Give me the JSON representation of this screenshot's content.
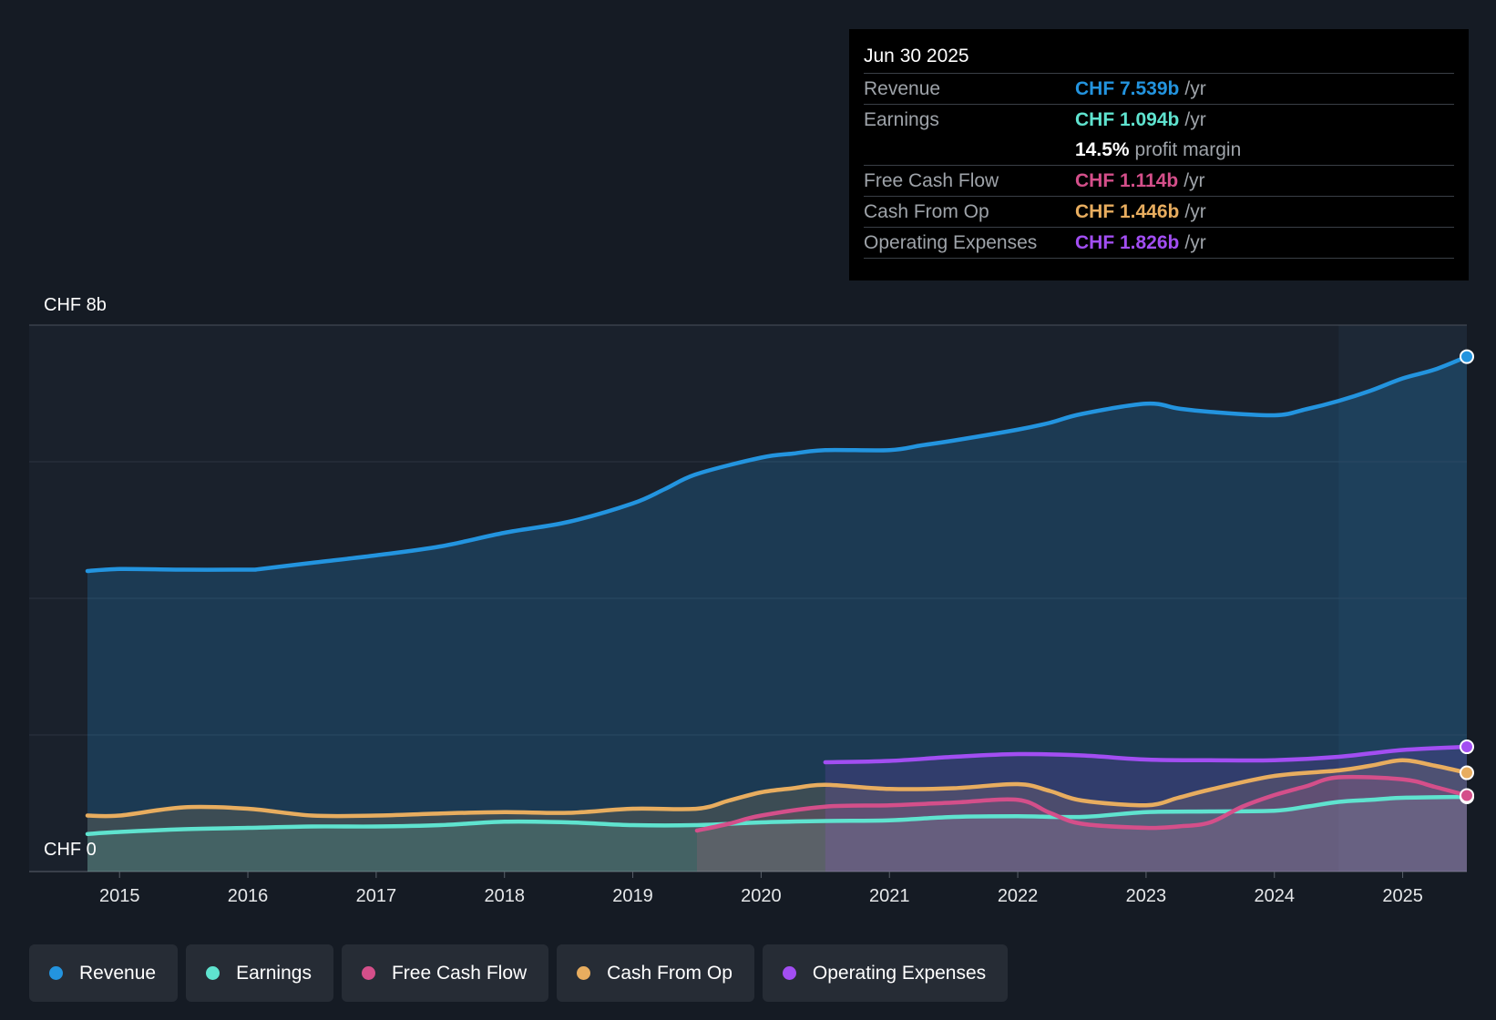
{
  "chart_data": {
    "type": "line",
    "y_axis": {
      "top_label": "CHF 8b",
      "bottom_label": "CHF 0",
      "ylim": [
        0,
        8
      ],
      "unit": "CHF b"
    },
    "x_axis": {
      "tick_labels": [
        "2015",
        "2016",
        "2017",
        "2018",
        "2019",
        "2020",
        "2021",
        "2022",
        "2023",
        "2024",
        "2025"
      ],
      "xlim": [
        2014.75,
        2025.5
      ]
    },
    "forecast_start": 2024.5,
    "series": [
      {
        "name": "Revenue",
        "color": "#2394df",
        "points": [
          [
            2014.75,
            4.4
          ],
          [
            2015.0,
            4.43
          ],
          [
            2015.5,
            4.42
          ],
          [
            2016.0,
            4.42
          ],
          [
            2016.1,
            4.43
          ],
          [
            2016.5,
            4.52
          ],
          [
            2017.0,
            4.63
          ],
          [
            2017.5,
            4.76
          ],
          [
            2018.0,
            4.96
          ],
          [
            2018.5,
            5.12
          ],
          [
            2019.0,
            5.39
          ],
          [
            2019.25,
            5.6
          ],
          [
            2019.5,
            5.82
          ],
          [
            2020.0,
            6.06
          ],
          [
            2020.25,
            6.12
          ],
          [
            2020.5,
            6.17
          ],
          [
            2021.0,
            6.17
          ],
          [
            2021.25,
            6.24
          ],
          [
            2021.5,
            6.31
          ],
          [
            2022.0,
            6.47
          ],
          [
            2022.25,
            6.57
          ],
          [
            2022.5,
            6.7
          ],
          [
            2023.0,
            6.85
          ],
          [
            2023.25,
            6.78
          ],
          [
            2023.5,
            6.73
          ],
          [
            2024.0,
            6.68
          ],
          [
            2024.25,
            6.77
          ],
          [
            2024.5,
            6.89
          ],
          [
            2024.75,
            7.04
          ],
          [
            2025.0,
            7.22
          ],
          [
            2025.25,
            7.35
          ],
          [
            2025.5,
            7.539
          ]
        ]
      },
      {
        "name": "Earnings",
        "color": "#5fe3cf",
        "points": [
          [
            2014.75,
            0.55
          ],
          [
            2015.0,
            0.58
          ],
          [
            2015.5,
            0.62
          ],
          [
            2016.0,
            0.64
          ],
          [
            2016.5,
            0.66
          ],
          [
            2017.0,
            0.66
          ],
          [
            2017.5,
            0.68
          ],
          [
            2018.0,
            0.73
          ],
          [
            2018.5,
            0.72
          ],
          [
            2019.0,
            0.68
          ],
          [
            2019.5,
            0.68
          ],
          [
            2020.0,
            0.72
          ],
          [
            2020.5,
            0.74
          ],
          [
            2021.0,
            0.75
          ],
          [
            2021.5,
            0.8
          ],
          [
            2022.0,
            0.81
          ],
          [
            2022.5,
            0.8
          ],
          [
            2023.0,
            0.87
          ],
          [
            2023.5,
            0.88
          ],
          [
            2024.0,
            0.89
          ],
          [
            2024.25,
            0.95
          ],
          [
            2024.5,
            1.02
          ],
          [
            2024.75,
            1.05
          ],
          [
            2025.0,
            1.08
          ],
          [
            2025.5,
            1.094
          ]
        ]
      },
      {
        "name": "Free Cash Flow",
        "color": "#d44f8a",
        "points": [
          [
            2019.5,
            0.6
          ],
          [
            2019.75,
            0.7
          ],
          [
            2020.0,
            0.82
          ],
          [
            2020.5,
            0.95
          ],
          [
            2021.0,
            0.97
          ],
          [
            2021.5,
            1.01
          ],
          [
            2022.0,
            1.05
          ],
          [
            2022.25,
            0.86
          ],
          [
            2022.5,
            0.7
          ],
          [
            2023.0,
            0.64
          ],
          [
            2023.25,
            0.66
          ],
          [
            2023.5,
            0.72
          ],
          [
            2023.75,
            0.95
          ],
          [
            2024.0,
            1.12
          ],
          [
            2024.25,
            1.25
          ],
          [
            2024.5,
            1.38
          ],
          [
            2025.0,
            1.35
          ],
          [
            2025.25,
            1.24
          ],
          [
            2025.5,
            1.114
          ]
        ]
      },
      {
        "name": "Cash From Op",
        "color": "#e8ad5f",
        "points": [
          [
            2014.75,
            0.82
          ],
          [
            2015.0,
            0.82
          ],
          [
            2015.5,
            0.94
          ],
          [
            2016.0,
            0.92
          ],
          [
            2016.5,
            0.82
          ],
          [
            2017.0,
            0.82
          ],
          [
            2017.5,
            0.85
          ],
          [
            2018.0,
            0.87
          ],
          [
            2018.5,
            0.86
          ],
          [
            2019.0,
            0.92
          ],
          [
            2019.5,
            0.92
          ],
          [
            2019.75,
            1.04
          ],
          [
            2020.0,
            1.16
          ],
          [
            2020.25,
            1.22
          ],
          [
            2020.5,
            1.27
          ],
          [
            2021.0,
            1.21
          ],
          [
            2021.5,
            1.22
          ],
          [
            2022.0,
            1.28
          ],
          [
            2022.25,
            1.18
          ],
          [
            2022.5,
            1.04
          ],
          [
            2023.0,
            0.97
          ],
          [
            2023.25,
            1.08
          ],
          [
            2023.5,
            1.2
          ],
          [
            2024.0,
            1.4
          ],
          [
            2024.5,
            1.48
          ],
          [
            2024.75,
            1.55
          ],
          [
            2025.0,
            1.63
          ],
          [
            2025.25,
            1.55
          ],
          [
            2025.5,
            1.446
          ]
        ]
      },
      {
        "name": "Operating Expenses",
        "color": "#a24ef2",
        "points": [
          [
            2020.5,
            1.6
          ],
          [
            2021.0,
            1.62
          ],
          [
            2021.5,
            1.68
          ],
          [
            2022.0,
            1.72
          ],
          [
            2022.5,
            1.7
          ],
          [
            2023.0,
            1.64
          ],
          [
            2023.5,
            1.63
          ],
          [
            2024.0,
            1.63
          ],
          [
            2024.5,
            1.68
          ],
          [
            2025.0,
            1.78
          ],
          [
            2025.5,
            1.826
          ]
        ]
      }
    ]
  },
  "tooltip": {
    "date": "Jun 30 2025",
    "rows": [
      {
        "label": "Revenue",
        "value": "CHF 7.539b",
        "unit": "/yr",
        "color": "#2394df"
      },
      {
        "label": "Earnings",
        "value": "CHF 1.094b",
        "unit": "/yr",
        "color": "#5fe3cf"
      },
      {
        "label": "Free Cash Flow",
        "value": "CHF 1.114b",
        "unit": "/yr",
        "color": "#d44f8a"
      },
      {
        "label": "Cash From Op",
        "value": "CHF 1.446b",
        "unit": "/yr",
        "color": "#e8ad5f"
      },
      {
        "label": "Operating Expenses",
        "value": "CHF 1.826b",
        "unit": "/yr",
        "color": "#a24ef2"
      }
    ],
    "profit_margin": {
      "value": "14.5%",
      "text": "profit margin"
    }
  },
  "legend": {
    "items": [
      {
        "label": "Revenue",
        "color": "#2394df"
      },
      {
        "label": "Earnings",
        "color": "#5fe3cf"
      },
      {
        "label": "Free Cash Flow",
        "color": "#d44f8a"
      },
      {
        "label": "Cash From Op",
        "color": "#e8ad5f"
      },
      {
        "label": "Operating Expenses",
        "color": "#a24ef2"
      }
    ]
  }
}
